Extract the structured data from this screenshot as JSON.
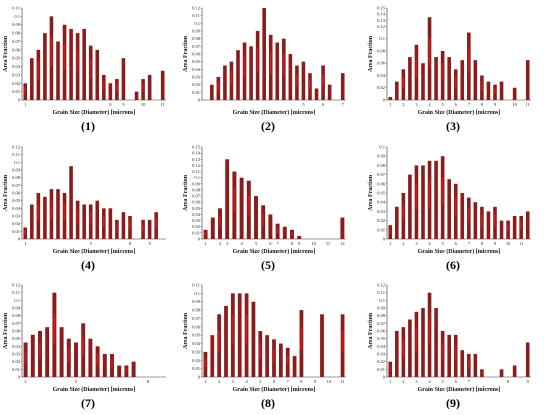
{
  "figure": {
    "colors": {
      "bar": "#8b1c1c",
      "bar_overlay": "#ff1a1a",
      "bar_highlight": "#2e8b1a",
      "axis": "#333333"
    }
  },
  "chart_data": [
    {
      "type": "bar",
      "panel_label": "(1)",
      "xlabel": "Grain Size (Diameter) [microns]",
      "ylabel": "Area Fraction",
      "ylim": [
        0,
        0.11
      ],
      "yticks": [
        0,
        0.01,
        0.02,
        0.03,
        0.04,
        0.05,
        0.06,
        0.07,
        0.08,
        0.09,
        0.1,
        0.11
      ],
      "ytick_labels": [
        "0",
        "0.01",
        "0.02",
        "0.03",
        "0.04",
        "0.05",
        "0.06",
        "0.07",
        "0.08",
        "0.09",
        "0.1",
        "0.11"
      ],
      "values": [
        0.02,
        0.05,
        0.06,
        0.08,
        0.1,
        0.07,
        0.09,
        0.085,
        0.08,
        0.085,
        0.065,
        0.06,
        0.03,
        0.02,
        0.025,
        0.05,
        0.0,
        0.01,
        0.025,
        0.03,
        0.0,
        0.035
      ],
      "xticks": [
        {
          "label": "1",
          "index": 0
        },
        {
          "label": "8",
          "index": 13
        },
        {
          "label": "9",
          "index": 15
        },
        {
          "label": "10",
          "index": 18
        },
        {
          "label": "11",
          "index": 21
        }
      ]
    },
    {
      "type": "bar",
      "panel_label": "(2)",
      "xlabel": "Grain Size (Diameter) [microns]",
      "ylabel": "Area Fraction",
      "ylim": [
        0,
        0.12
      ],
      "yticks": [
        0,
        0.01,
        0.02,
        0.03,
        0.04,
        0.05,
        0.06,
        0.07,
        0.08,
        0.09,
        0.1,
        0.11,
        0.12
      ],
      "ytick_labels": [
        "0",
        "0.01",
        "0.02",
        "0.03",
        "0.04",
        "0.05",
        "0.06",
        "0.07",
        "0.08",
        "0.09",
        "0.1",
        "0.11",
        "0.12"
      ],
      "values": [
        0.0,
        0.02,
        0.03,
        0.045,
        0.05,
        0.065,
        0.075,
        0.07,
        0.09,
        0.12,
        0.085,
        0.075,
        0.08,
        0.06,
        0.045,
        0.05,
        0.035,
        0.015,
        0.045,
        0.02,
        0.0,
        0.035
      ],
      "xticks": [
        {
          "label": "5",
          "index": 15
        },
        {
          "label": "6",
          "index": 18
        },
        {
          "label": "7",
          "index": 21
        }
      ]
    },
    {
      "type": "bar",
      "panel_label": "(3)",
      "xlabel": "Grain Size (Diameter) [microns]",
      "ylabel": "Area Fraction",
      "ylim": [
        0,
        0.15
      ],
      "yticks": [
        0,
        0.02,
        0.04,
        0.06,
        0.08,
        0.1,
        0.12,
        0.13,
        0.14,
        0.15
      ],
      "ytick_labels": [
        "0",
        "0.02",
        "0.04",
        "0.06",
        "0.08",
        "0.1",
        "0.12",
        "0.13",
        "0.14",
        "0.15"
      ],
      "values": [
        0.005,
        0.03,
        0.05,
        0.07,
        0.09,
        0.06,
        0.135,
        0.07,
        0.08,
        0.07,
        0.05,
        0.065,
        0.11,
        0.065,
        0.04,
        0.03,
        0.025,
        0.03,
        0.0,
        0.02,
        0.0,
        0.065
      ],
      "xticks": [
        {
          "label": "1",
          "index": 0
        },
        {
          "label": "2",
          "index": 2
        },
        {
          "label": "3",
          "index": 4
        },
        {
          "label": "4",
          "index": 6
        },
        {
          "label": "5",
          "index": 8
        },
        {
          "label": "6",
          "index": 10
        },
        {
          "label": "7",
          "index": 12
        },
        {
          "label": "8",
          "index": 14
        },
        {
          "label": "9",
          "index": 16
        },
        {
          "label": "10",
          "index": 19
        },
        {
          "label": "11",
          "index": 21
        }
      ]
    },
    {
      "type": "bar",
      "panel_label": "(4)",
      "xlabel": "Grain Size (Diameter) [microns]",
      "ylabel": "Area Fraction",
      "ylim": [
        0,
        0.12
      ],
      "yticks": [
        0,
        0.01,
        0.02,
        0.03,
        0.04,
        0.05,
        0.06,
        0.07,
        0.08,
        0.09,
        0.1,
        0.11,
        0.12
      ],
      "ytick_labels": [
        "0",
        "0.01",
        "0.02",
        "0.03",
        "0.04",
        "0.05",
        "0.06",
        "0.07",
        "0.08",
        "0.09",
        "0.1",
        "0.11",
        "0.12"
      ],
      "values": [
        0.015,
        0.045,
        0.06,
        0.055,
        0.065,
        0.065,
        0.06,
        0.095,
        0.05,
        0.045,
        0.045,
        0.05,
        0.04,
        0.04,
        0.025,
        0.035,
        0.03,
        0.0,
        0.025,
        0.025,
        0.035,
        0.0
      ],
      "xticks": [
        {
          "label": "1",
          "index": 0
        },
        {
          "label": "5",
          "index": 10
        },
        {
          "label": "8",
          "index": 16
        },
        {
          "label": "9",
          "index": 19
        }
      ]
    },
    {
      "type": "bar",
      "panel_label": "(5)",
      "xlabel": "Grain Size (Diameter) [microns]",
      "ylabel": "Area Fraction",
      "ylim": [
        0,
        0.15
      ],
      "yticks": [
        0,
        0.01,
        0.02,
        0.03,
        0.04,
        0.05,
        0.06,
        0.07,
        0.08,
        0.09,
        0.1,
        0.11,
        0.12,
        0.13,
        0.14,
        0.15
      ],
      "ytick_labels": [
        "0",
        "0.01",
        "0.02",
        "0.03",
        "0.04",
        "0.05",
        "0.06",
        "0.07",
        "0.08",
        "0.09",
        "0.1",
        "0.11",
        "0.12",
        "0.13",
        "0.14",
        "0.15"
      ],
      "values": [
        0.015,
        0.035,
        0.05,
        0.13,
        0.11,
        0.1,
        0.095,
        0.07,
        0.055,
        0.04,
        0.025,
        0.02,
        0.015,
        0.005,
        0.0,
        0.0,
        0.0,
        0.0,
        0.0,
        0.035
      ],
      "xticks": [
        {
          "label": "1",
          "index": 0
        },
        {
          "label": "2",
          "index": 2
        },
        {
          "label": "3",
          "index": 3
        },
        {
          "label": "4",
          "index": 5
        },
        {
          "label": "5",
          "index": 7
        },
        {
          "label": "6",
          "index": 9
        },
        {
          "label": "7",
          "index": 10
        },
        {
          "label": "8",
          "index": 12
        },
        {
          "label": "9",
          "index": 13
        },
        {
          "label": "10",
          "index": 15
        },
        {
          "label": "11",
          "index": 17
        },
        {
          "label": "12",
          "index": 19
        }
      ]
    },
    {
      "type": "bar",
      "panel_label": "(6)",
      "xlabel": "Grain Size (Diameter) [microns]",
      "ylabel": "Area Fraction",
      "ylim": [
        0,
        0.1
      ],
      "yticks": [
        0,
        0.01,
        0.02,
        0.03,
        0.04,
        0.05,
        0.06,
        0.07,
        0.08,
        0.09,
        0.1
      ],
      "ytick_labels": [
        "0",
        "0.01",
        "0.02",
        "0.03",
        "0.04",
        "0.05",
        "0.06",
        "0.07",
        "0.08",
        "0.09",
        "0.1"
      ],
      "values": [
        0.015,
        0.035,
        0.05,
        0.07,
        0.08,
        0.08,
        0.085,
        0.085,
        0.09,
        0.065,
        0.06,
        0.05,
        0.045,
        0.04,
        0.035,
        0.03,
        0.035,
        0.02,
        0.02,
        0.025,
        0.025,
        0.03
      ],
      "xticks": [
        {
          "label": "1",
          "index": 0
        },
        {
          "label": "2",
          "index": 2
        },
        {
          "label": "3",
          "index": 4
        },
        {
          "label": "4",
          "index": 6
        },
        {
          "label": "5",
          "index": 8
        },
        {
          "label": "6",
          "index": 10
        },
        {
          "label": "7",
          "index": 12
        },
        {
          "label": "8",
          "index": 14
        },
        {
          "label": "9",
          "index": 16
        },
        {
          "label": "10",
          "index": 18
        },
        {
          "label": "11",
          "index": 20
        }
      ]
    },
    {
      "type": "bar",
      "panel_label": "(7)",
      "xlabel": "Grain Size (Diameter) [microns]",
      "ylabel": "Area Fraction",
      "ylim": [
        0,
        0.12
      ],
      "yticks": [
        0,
        0.01,
        0.02,
        0.03,
        0.04,
        0.05,
        0.06,
        0.07,
        0.08,
        0.09,
        0.1,
        0.11,
        0.12
      ],
      "ytick_labels": [
        "0",
        "0.01",
        "0.02",
        "0.03",
        "0.04",
        "0.05",
        "0.06",
        "0.07",
        "0.08",
        "0.09",
        "0.1",
        "0.11",
        "0.12"
      ],
      "values": [
        0.045,
        0.055,
        0.06,
        0.065,
        0.11,
        0.065,
        0.05,
        0.045,
        0.07,
        0.05,
        0.04,
        0.03,
        0.03,
        0.015,
        0.015,
        0.02,
        0.0,
        0.0,
        0.0,
        0.0
      ],
      "xticks": [
        {
          "label": "1",
          "index": 0
        },
        {
          "label": "5",
          "index": 7
        },
        {
          "label": "8",
          "index": 17
        }
      ]
    },
    {
      "type": "bar",
      "panel_label": "(8)",
      "xlabel": "Grain Size (Diameter) [microns]",
      "ylabel": "Area Fraction",
      "ylim": [
        0,
        0.11
      ],
      "yticks": [
        0,
        0.01,
        0.02,
        0.03,
        0.04,
        0.05,
        0.06,
        0.07,
        0.08,
        0.09,
        0.1,
        0.11
      ],
      "ytick_labels": [
        "0",
        "0.01",
        "0.02",
        "0.03",
        "0.04",
        "0.05",
        "0.06",
        "0.07",
        "0.08",
        "0.09",
        "0.1",
        "0.11"
      ],
      "values": [
        0.03,
        0.05,
        0.075,
        0.085,
        0.1,
        0.1,
        0.1,
        0.09,
        0.055,
        0.05,
        0.045,
        0.04,
        0.035,
        0.025,
        0.08,
        0.0,
        0.0,
        0.075,
        0.0,
        0.0,
        0.075
      ],
      "xticks": [
        {
          "label": "1",
          "index": 0
        },
        {
          "label": "2",
          "index": 2
        },
        {
          "label": "3",
          "index": 4
        },
        {
          "label": "4",
          "index": 6
        },
        {
          "label": "5",
          "index": 8
        },
        {
          "label": "6",
          "index": 10
        },
        {
          "label": "7",
          "index": 12
        },
        {
          "label": "8",
          "index": 14
        },
        {
          "label": "9",
          "index": 16
        },
        {
          "label": "10",
          "index": 18
        },
        {
          "label": "11",
          "index": 20
        }
      ]
    },
    {
      "type": "bar",
      "panel_label": "(9)",
      "xlabel": "Grain Size (Diameter) [microns]",
      "ylabel": "Area Fraction",
      "ylim": [
        0,
        0.12
      ],
      "yticks": [
        0,
        0.01,
        0.02,
        0.03,
        0.04,
        0.05,
        0.06,
        0.07,
        0.08,
        0.09,
        0.1,
        0.11,
        0.12
      ],
      "ytick_labels": [
        "0",
        "0.01",
        "0.02",
        "0.03",
        "0.04",
        "0.05",
        "0.06",
        "0.07",
        "0.08",
        "0.09",
        "0.1",
        "0.11",
        "0.12"
      ],
      "values": [
        0.02,
        0.06,
        0.065,
        0.075,
        0.085,
        0.09,
        0.11,
        0.09,
        0.06,
        0.055,
        0.055,
        0.035,
        0.03,
        0.03,
        0.01,
        0.0,
        0.0,
        0.01,
        0.0,
        0.015,
        0.0,
        0.045
      ],
      "xticks": [
        {
          "label": "1",
          "index": 0
        },
        {
          "label": "2",
          "index": 2
        },
        {
          "label": "3",
          "index": 4
        },
        {
          "label": "4",
          "index": 6
        },
        {
          "label": "5",
          "index": 8
        },
        {
          "label": "6",
          "index": 10
        },
        {
          "label": "7",
          "index": 12
        },
        {
          "label": "8",
          "index": 18
        },
        {
          "label": "9",
          "index": 21
        }
      ]
    }
  ]
}
